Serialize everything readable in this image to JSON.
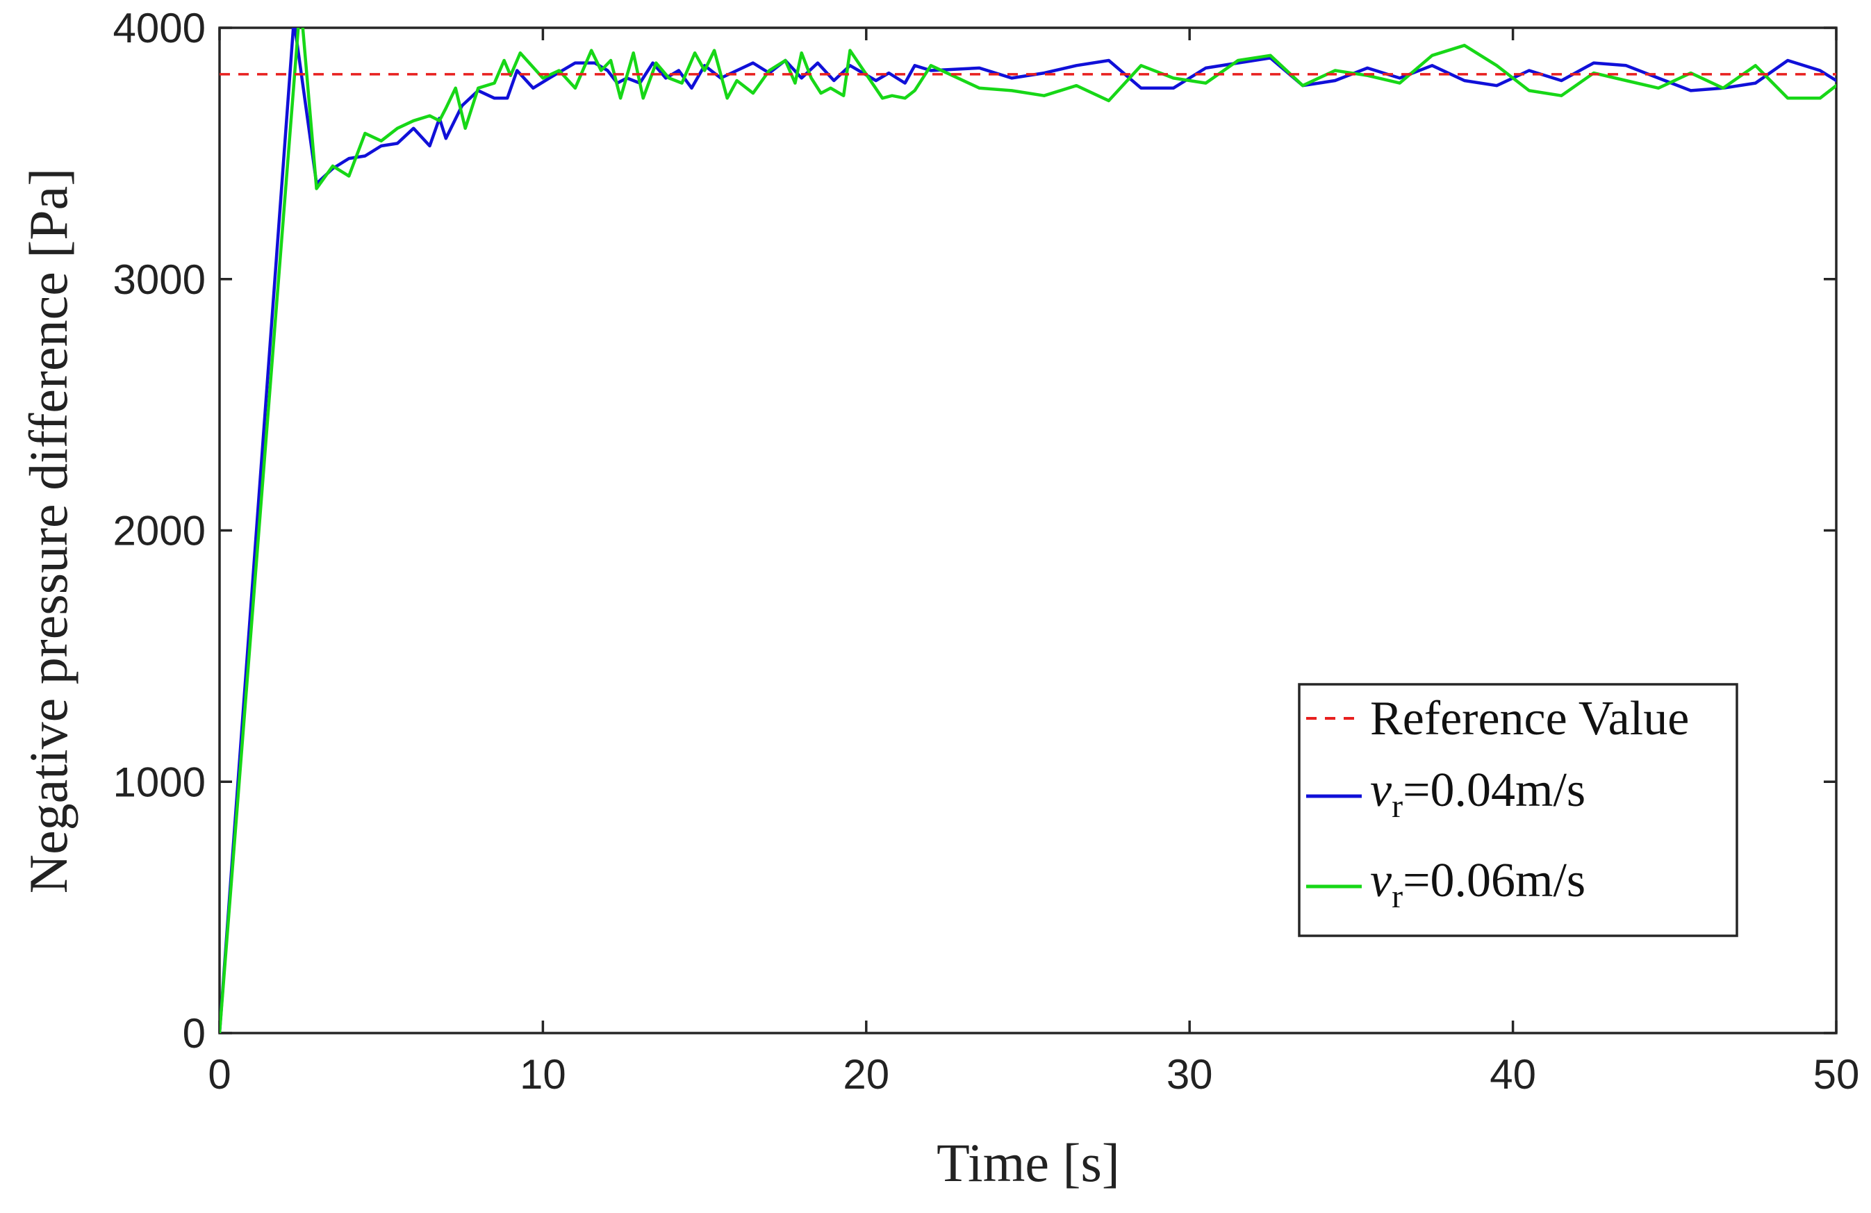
{
  "chart_data": {
    "type": "line",
    "title": "",
    "xlabel": "Time [s]",
    "ylabel": "Negative pressure difference [Pa]",
    "xlim": [
      0,
      50
    ],
    "ylim": [
      0,
      4000
    ],
    "xticks": [
      0,
      10,
      20,
      30,
      40,
      50
    ],
    "yticks": [
      0,
      1000,
      2000,
      3000,
      4000
    ],
    "grid": false,
    "legend_position": "bottom-right",
    "reference": {
      "name": "Reference Value",
      "value": 3815,
      "color": "#e8201f",
      "style": "dashed"
    },
    "series": [
      {
        "name": "v_r=0.04m/s",
        "label_var": "v",
        "label_sub": "r",
        "label_rest": "=0.04m/s",
        "color": "#1010d8",
        "x": [
          0,
          2.3,
          3.0,
          3.5,
          4.0,
          4.5,
          5.0,
          5.5,
          6.0,
          6.5,
          6.8,
          7.0,
          7.5,
          8.0,
          8.5,
          8.9,
          9.2,
          9.7,
          10.2,
          11.0,
          11.6,
          12.0,
          12.3,
          12.6,
          13.0,
          13.4,
          13.8,
          14.2,
          14.6,
          15.0,
          15.5,
          16.0,
          16.5,
          17.0,
          17.5,
          18.0,
          18.5,
          19.0,
          19.5,
          20.3,
          20.7,
          21.2,
          21.5,
          22.0,
          23.5,
          24.5,
          25.5,
          26.5,
          27.5,
          28.5,
          29.5,
          30.5,
          31.5,
          32.5,
          33.5,
          34.5,
          35.5,
          36.5,
          37.5,
          38.5,
          39.5,
          40.5,
          41.5,
          42.5,
          43.5,
          44.5,
          45.5,
          46.5,
          47.5,
          48.5,
          49.5,
          50
        ],
        "y": [
          0,
          4030,
          3380,
          3440,
          3480,
          3490,
          3530,
          3540,
          3600,
          3530,
          3640,
          3560,
          3690,
          3750,
          3720,
          3720,
          3830,
          3760,
          3800,
          3860,
          3860,
          3830,
          3780,
          3800,
          3780,
          3860,
          3800,
          3830,
          3760,
          3850,
          3800,
          3830,
          3860,
          3820,
          3870,
          3800,
          3860,
          3790,
          3850,
          3790,
          3820,
          3780,
          3850,
          3830,
          3840,
          3800,
          3820,
          3850,
          3870,
          3760,
          3760,
          3840,
          3860,
          3880,
          3770,
          3790,
          3840,
          3800,
          3850,
          3790,
          3770,
          3830,
          3790,
          3860,
          3850,
          3800,
          3750,
          3760,
          3780,
          3870,
          3830,
          3790
        ]
      },
      {
        "name": "v_r=0.06m/s",
        "label_var": "v",
        "label_sub": "r",
        "label_rest": "=0.06m/s",
        "color": "#17d717",
        "x": [
          0,
          2.5,
          3.0,
          3.5,
          4.0,
          4.5,
          5.0,
          5.5,
          6.0,
          6.5,
          6.8,
          7.0,
          7.3,
          7.6,
          8.0,
          8.5,
          8.8,
          9.0,
          9.3,
          10.0,
          10.5,
          11.0,
          11.5,
          11.8,
          12.1,
          12.4,
          12.8,
          13.1,
          13.5,
          13.9,
          14.3,
          14.7,
          15.0,
          15.3,
          15.7,
          16.0,
          16.5,
          17.0,
          17.5,
          17.8,
          18.0,
          18.3,
          18.6,
          18.9,
          19.3,
          19.5,
          20.5,
          20.8,
          21.2,
          21.5,
          22.0,
          23.5,
          24.5,
          25.5,
          26.5,
          27.5,
          28.5,
          29.5,
          30.5,
          31.5,
          32.5,
          33.5,
          34.5,
          35.5,
          36.5,
          37.5,
          38.5,
          39.5,
          40.5,
          41.5,
          42.5,
          43.5,
          44.5,
          45.5,
          46.5,
          47.5,
          48.5,
          49.5,
          50
        ],
        "y": [
          0,
          4110,
          3360,
          3450,
          3410,
          3580,
          3550,
          3600,
          3630,
          3650,
          3630,
          3680,
          3760,
          3600,
          3760,
          3780,
          3870,
          3810,
          3900,
          3800,
          3830,
          3760,
          3910,
          3830,
          3870,
          3720,
          3900,
          3720,
          3860,
          3800,
          3780,
          3900,
          3830,
          3910,
          3720,
          3790,
          3740,
          3830,
          3870,
          3780,
          3900,
          3800,
          3740,
          3760,
          3730,
          3910,
          3720,
          3730,
          3720,
          3750,
          3850,
          3760,
          3750,
          3730,
          3770,
          3710,
          3850,
          3800,
          3780,
          3870,
          3890,
          3770,
          3830,
          3810,
          3780,
          3890,
          3930,
          3850,
          3750,
          3730,
          3820,
          3790,
          3760,
          3820,
          3760,
          3850,
          3720,
          3720,
          3770
        ]
      }
    ]
  }
}
